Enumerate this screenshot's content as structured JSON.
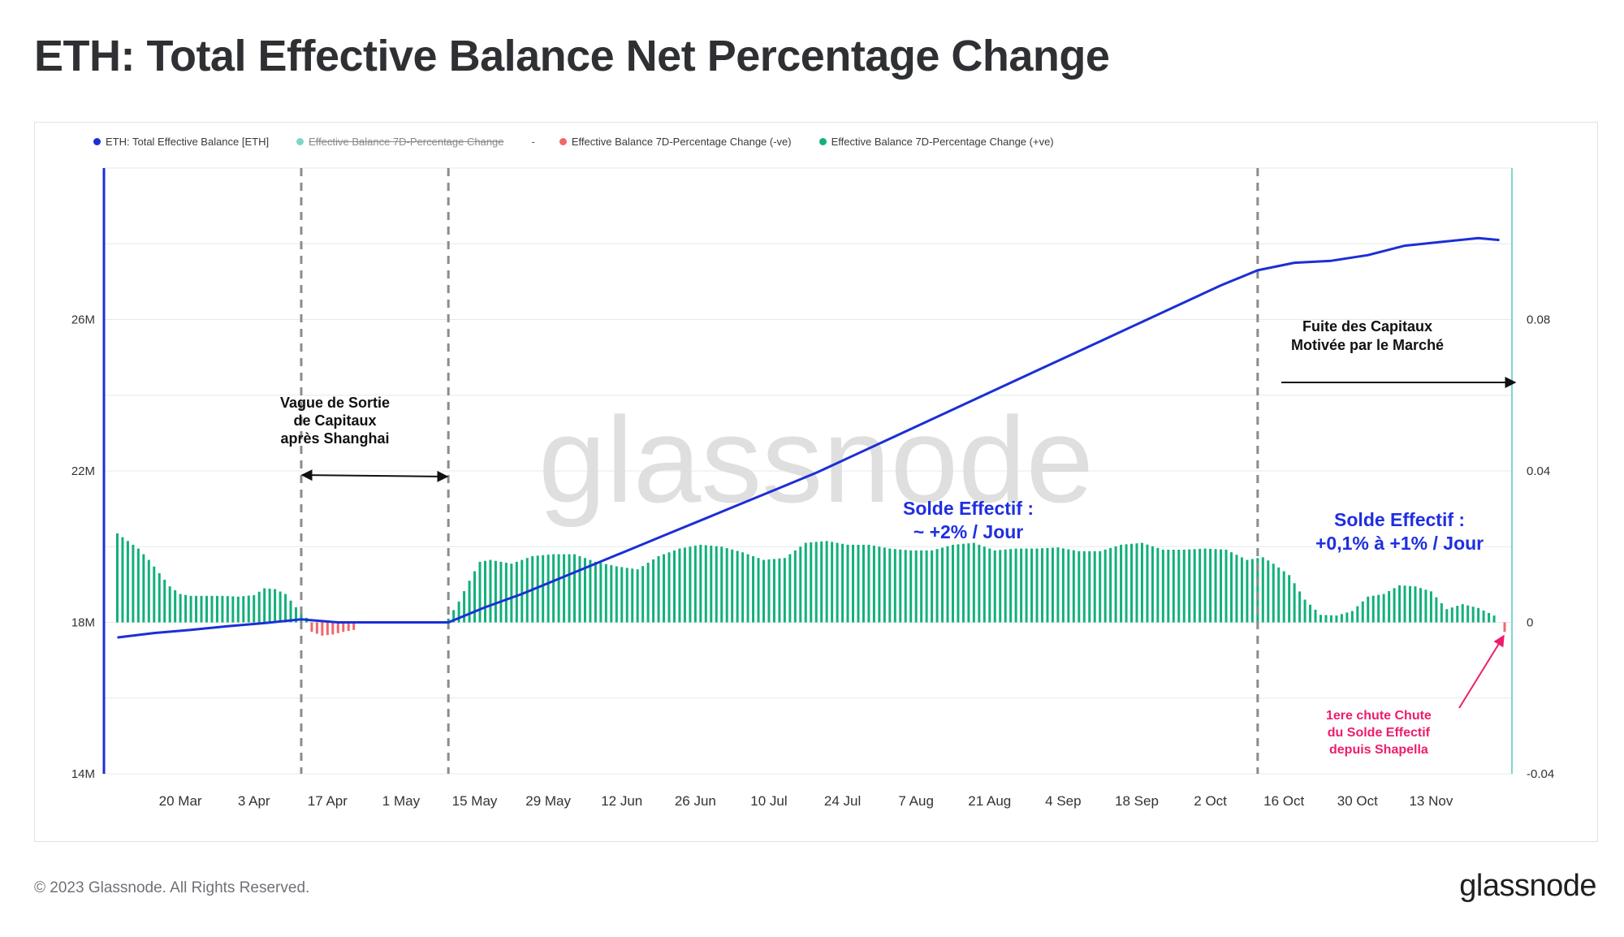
{
  "title": "ETH: Total Effective Balance Net Percentage Change",
  "legend": [
    {
      "label": "ETH: Total Effective Balance [ETH]",
      "color": "#1b2fd6",
      "state": "on"
    },
    {
      "label": "Effective Balance 7D-Percentage Change",
      "color": "#7fd6c8",
      "state": "off"
    },
    {
      "label": "-",
      "color": "",
      "state": "separator"
    },
    {
      "label": "Effective Balance 7D-Percentage Change (-ve)",
      "color": "#f0676a",
      "state": "on"
    },
    {
      "label": "Effective Balance 7D-Percentage Change (+ve)",
      "color": "#12b07a",
      "state": "on"
    }
  ],
  "watermark": "glassnode",
  "annotations": {
    "shanghai": [
      "Vague de Sortie",
      "de Capitaux",
      "après Shanghai"
    ],
    "fuite": [
      "Fuite des Capitaux",
      "Motivée par le Marché"
    ],
    "solde1": [
      "Solde Effectif :",
      "~ +2% / Jour"
    ],
    "solde2": [
      "Solde Effectif :",
      "+0,1% à +1% / Jour"
    ],
    "chute": [
      "1ere chute Chute",
      "du Solde Effectif",
      "depuis Shapella"
    ]
  },
  "footer": {
    "copyright": "© 2023 Glassnode. All Rights Reserved.",
    "logo": "glassnode"
  },
  "colors": {
    "line": "#1b2fd6",
    "positive": "#12b07a",
    "negative": "#f0676a",
    "annotation_blue": "#1f2fe0",
    "annotation_pink": "#ee1d6b",
    "right_axis": "#7fd6c8"
  },
  "chart_data": {
    "type": "line",
    "x_ticks": [
      "20 Mar",
      "3 Apr",
      "17 Apr",
      "1 May",
      "15 May",
      "29 May",
      "12 Jun",
      "26 Jun",
      "10 Jul",
      "24 Jul",
      "7 Aug",
      "21 Aug",
      "4 Sep",
      "18 Sep",
      "2 Oct",
      "16 Oct",
      "30 Oct",
      "13 Nov"
    ],
    "x_range": [
      "2023-03-07",
      "2023-11-27"
    ],
    "y_left": {
      "ticks": [
        "14M",
        "18M",
        "22M",
        "26M"
      ],
      "range": [
        14000000,
        30000000
      ]
    },
    "y_right": {
      "ticks": [
        "-0.04",
        "0",
        "0.04",
        "0.08"
      ],
      "range": [
        -0.04,
        0.12
      ]
    },
    "vertical_markers": [
      "2023-04-12",
      "2023-05-10",
      "2023-10-11"
    ],
    "series": [
      {
        "name": "ETH: Total Effective Balance [ETH]",
        "axis": "left",
        "points": [
          [
            "2023-03-08",
            17.6
          ],
          [
            "2023-03-15",
            17.72
          ],
          [
            "2023-03-22",
            17.8
          ],
          [
            "2023-03-29",
            17.9
          ],
          [
            "2023-04-05",
            17.98
          ],
          [
            "2023-04-12",
            18.08
          ],
          [
            "2023-04-19",
            18.0
          ],
          [
            "2023-04-26",
            18.0
          ],
          [
            "2023-05-03",
            18.0
          ],
          [
            "2023-05-10",
            18.0
          ],
          [
            "2023-05-17",
            18.4
          ],
          [
            "2023-05-24",
            18.75
          ],
          [
            "2023-05-31",
            19.15
          ],
          [
            "2023-06-07",
            19.55
          ],
          [
            "2023-06-14",
            19.95
          ],
          [
            "2023-06-21",
            20.35
          ],
          [
            "2023-06-28",
            20.75
          ],
          [
            "2023-07-05",
            21.15
          ],
          [
            "2023-07-12",
            21.55
          ],
          [
            "2023-07-19",
            21.95
          ],
          [
            "2023-07-26",
            22.4
          ],
          [
            "2023-08-02",
            22.85
          ],
          [
            "2023-08-09",
            23.3
          ],
          [
            "2023-08-16",
            23.75
          ],
          [
            "2023-08-23",
            24.2
          ],
          [
            "2023-08-30",
            24.65
          ],
          [
            "2023-09-06",
            25.1
          ],
          [
            "2023-09-13",
            25.55
          ],
          [
            "2023-09-20",
            26.0
          ],
          [
            "2023-09-27",
            26.45
          ],
          [
            "2023-10-04",
            26.9
          ],
          [
            "2023-10-11",
            27.3
          ],
          [
            "2023-10-18",
            27.5
          ],
          [
            "2023-10-25",
            27.55
          ],
          [
            "2023-11-01",
            27.7
          ],
          [
            "2023-11-08",
            27.95
          ],
          [
            "2023-11-15",
            28.05
          ],
          [
            "2023-11-22",
            28.15
          ],
          [
            "2023-11-26",
            28.1
          ]
        ],
        "unit": "M ETH"
      },
      {
        "name": "Effective Balance 7D-Percentage Change (+ve)",
        "axis": "right",
        "points": [
          [
            "2023-03-08",
            0.0235
          ],
          [
            "2023-03-10",
            0.0215
          ],
          [
            "2023-03-12",
            0.0195
          ],
          [
            "2023-03-14",
            0.0165
          ],
          [
            "2023-03-16",
            0.013
          ],
          [
            "2023-03-18",
            0.0095
          ],
          [
            "2023-03-20",
            0.0075
          ],
          [
            "2023-03-22",
            0.007
          ],
          [
            "2023-03-25",
            0.007
          ],
          [
            "2023-03-28",
            0.007
          ],
          [
            "2023-03-31",
            0.0068
          ],
          [
            "2023-04-03",
            0.0072
          ],
          [
            "2023-04-05",
            0.009
          ],
          [
            "2023-04-07",
            0.0088
          ],
          [
            "2023-04-09",
            0.0075
          ],
          [
            "2023-04-11",
            0.004
          ],
          [
            "2023-04-13",
            0.0012
          ],
          [
            "2023-05-10",
            0.001
          ],
          [
            "2023-05-12",
            0.0055
          ],
          [
            "2023-05-14",
            0.011
          ],
          [
            "2023-05-16",
            0.016
          ],
          [
            "2023-05-18",
            0.0165
          ],
          [
            "2023-05-22",
            0.0155
          ],
          [
            "2023-05-26",
            0.0175
          ],
          [
            "2023-05-30",
            0.018
          ],
          [
            "2023-06-03",
            0.018
          ],
          [
            "2023-06-07",
            0.016
          ],
          [
            "2023-06-11",
            0.0148
          ],
          [
            "2023-06-15",
            0.014
          ],
          [
            "2023-06-19",
            0.0175
          ],
          [
            "2023-06-23",
            0.0195
          ],
          [
            "2023-06-27",
            0.0205
          ],
          [
            "2023-07-01",
            0.02
          ],
          [
            "2023-07-05",
            0.0185
          ],
          [
            "2023-07-09",
            0.0165
          ],
          [
            "2023-07-13",
            0.017
          ],
          [
            "2023-07-17",
            0.021
          ],
          [
            "2023-07-21",
            0.0215
          ],
          [
            "2023-07-25",
            0.0205
          ],
          [
            "2023-07-29",
            0.0205
          ],
          [
            "2023-08-02",
            0.0195
          ],
          [
            "2023-08-06",
            0.019
          ],
          [
            "2023-08-10",
            0.019
          ],
          [
            "2023-08-14",
            0.0205
          ],
          [
            "2023-08-18",
            0.021
          ],
          [
            "2023-08-22",
            0.019
          ],
          [
            "2023-08-26",
            0.0195
          ],
          [
            "2023-08-30",
            0.0195
          ],
          [
            "2023-09-03",
            0.0198
          ],
          [
            "2023-09-07",
            0.0188
          ],
          [
            "2023-09-11",
            0.0188
          ],
          [
            "2023-09-15",
            0.0205
          ],
          [
            "2023-09-19",
            0.021
          ],
          [
            "2023-09-23",
            0.0192
          ],
          [
            "2023-09-27",
            0.0192
          ],
          [
            "2023-10-01",
            0.0195
          ],
          [
            "2023-10-05",
            0.0192
          ],
          [
            "2023-10-09",
            0.0165
          ],
          [
            "2023-10-12",
            0.0172
          ],
          [
            "2023-10-14",
            0.0155
          ],
          [
            "2023-10-17",
            0.0125
          ],
          [
            "2023-10-20",
            0.006
          ],
          [
            "2023-10-23",
            0.002
          ],
          [
            "2023-10-26",
            0.0018
          ],
          [
            "2023-10-29",
            0.003
          ],
          [
            "2023-11-01",
            0.0068
          ],
          [
            "2023-11-04",
            0.0075
          ],
          [
            "2023-11-07",
            0.0098
          ],
          [
            "2023-11-10",
            0.0095
          ],
          [
            "2023-11-13",
            0.0082
          ],
          [
            "2023-11-16",
            0.0035
          ],
          [
            "2023-11-19",
            0.0048
          ],
          [
            "2023-11-22",
            0.0038
          ],
          [
            "2023-11-25",
            0.0018
          ]
        ]
      },
      {
        "name": "Effective Balance 7D-Percentage Change (-ve)",
        "axis": "right",
        "points": [
          [
            "2023-04-14",
            -0.0025
          ],
          [
            "2023-04-16",
            -0.0035
          ],
          [
            "2023-04-18",
            -0.0032
          ],
          [
            "2023-04-20",
            -0.0025
          ],
          [
            "2023-04-22",
            -0.002
          ],
          [
            "2023-11-27",
            -0.0025
          ]
        ]
      }
    ]
  }
}
